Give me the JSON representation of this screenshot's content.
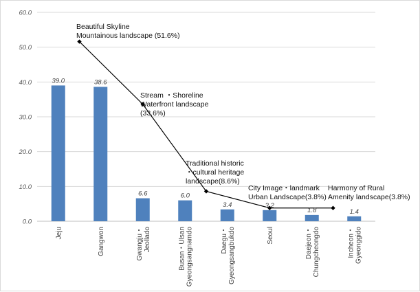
{
  "chart_data": {
    "type": "bar",
    "title": "",
    "xlabel": "",
    "ylabel": "",
    "ylim": [
      0,
      60
    ],
    "yticks": [
      "0.0",
      "10.0",
      "20.0",
      "30.0",
      "40.0",
      "50.0",
      "60.0"
    ],
    "grid": true,
    "bar_color": "#4f81bd",
    "categories": [
      "Jeju",
      "Gangwon",
      "Gwangju・\nJeollado",
      "Busan・Ulsan\nGyeongsangnamdo",
      "Daegu・\nGyeongsangbukdo",
      "Seoul",
      "Daejeon・\nChungcheongdo",
      "Incheon・\nGyeonggido"
    ],
    "values": [
      39.0,
      38.6,
      6.6,
      6.0,
      3.4,
      3.2,
      1.8,
      1.4
    ],
    "value_labels": [
      "39.0",
      "38.6",
      "6.6",
      "6.0",
      "3.4",
      "3.2",
      "1.8",
      "1.4"
    ],
    "line": {
      "color": "#000000",
      "points": [
        {
          "x_index": 0.5,
          "y": 51.6,
          "label": "Beautiful Skyline\nMountainous landscape (51.6%)"
        },
        {
          "x_index": 2.0,
          "y": 33.6,
          "label": "Stream ・Shoreline\nWaterfront landscape\n(33.6%)"
        },
        {
          "x_index": 3.5,
          "y": 8.6,
          "label": "Traditional historic\n・cultural heritage\nlandscape(8.6%)"
        },
        {
          "x_index": 5.0,
          "y": 3.8,
          "label": "City Image・landmark\nUrban Landscape(3.8%)"
        },
        {
          "x_index": 6.5,
          "y": 3.8,
          "label": "Harmony of Rural\nAmenity landscape(3.8%)"
        }
      ]
    }
  }
}
